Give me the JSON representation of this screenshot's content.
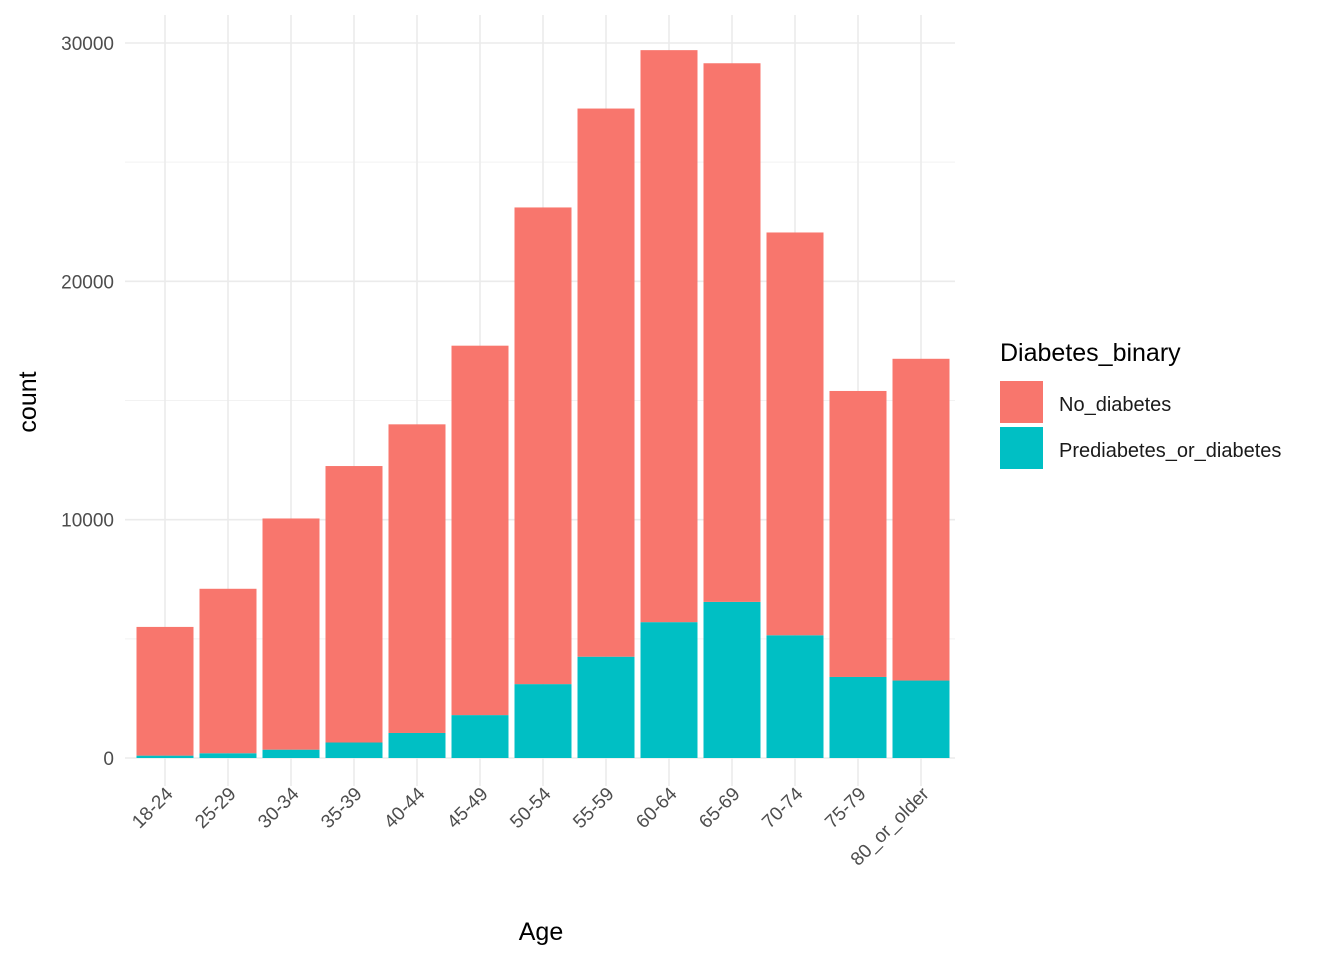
{
  "chart_data": {
    "type": "bar",
    "stacked": true,
    "title": "",
    "xlabel": "Age",
    "ylabel": "count",
    "ylim": [
      0,
      30000
    ],
    "yticks": [
      0,
      10000,
      20000,
      30000
    ],
    "grid": true,
    "legend": {
      "title": "Diabetes_binary",
      "position": "right"
    },
    "categories": [
      "18-24",
      "25-29",
      "30-34",
      "35-39",
      "40-44",
      "45-49",
      "50-54",
      "55-59",
      "60-64",
      "65-69",
      "70-74",
      "75-79",
      "80_or_older"
    ],
    "series": [
      {
        "name": "No_diabetes",
        "color": "#F8766D",
        "values": [
          5400,
          6900,
          9700,
          11600,
          12950,
          15500,
          20000,
          23000,
          24000,
          22600,
          16900,
          12000,
          13500
        ]
      },
      {
        "name": "Prediabetes_or_diabetes",
        "color": "#00BFC4",
        "values": [
          100,
          200,
          350,
          650,
          1050,
          1800,
          3100,
          4250,
          5700,
          6550,
          5150,
          3400,
          3250
        ]
      }
    ]
  }
}
